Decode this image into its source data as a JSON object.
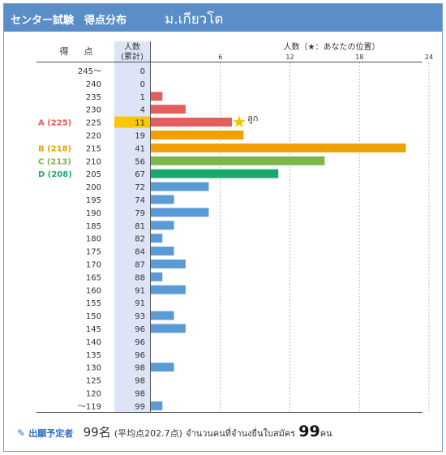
{
  "header": {
    "title": "センター試験　得点分布",
    "school": "ม.เกียวโต"
  },
  "colors": {
    "header_bg": "#5b8ec9",
    "bar_default": "#5b9bd5",
    "bar_red": "#e35d5d",
    "bar_orange": "#f0a000",
    "bar_green_light": "#7ab648",
    "bar_green_dark": "#1aa86c",
    "cum_col_bg": "#dde4f6",
    "cum_highlight": "#f8c800",
    "star": "#f5c400"
  },
  "chart_data": {
    "type": "bar",
    "orientation": "horizontal",
    "columns": {
      "score_header": [
        "得",
        "点"
      ],
      "cumulative_header": [
        "人数",
        "(累計)"
      ],
      "axis_title": "人数（★：あなたの位置）"
    },
    "x_ticks": [
      6,
      12,
      18,
      24
    ],
    "xlim": [
      0,
      24
    ],
    "grid": true,
    "rows": [
      {
        "score": "245～",
        "cumulative": 0,
        "count": 0,
        "color": "default"
      },
      {
        "score": "240",
        "cumulative": 0,
        "count": 0,
        "color": "default"
      },
      {
        "score": "235",
        "cumulative": 1,
        "count": 1,
        "color": "red"
      },
      {
        "score": "230",
        "cumulative": 4,
        "count": 3,
        "color": "red"
      },
      {
        "score": "225",
        "cumulative": 11,
        "count": 7,
        "color": "red",
        "highlight": true,
        "rank": "A (225)",
        "rank_color": "#e35d5d",
        "star": true,
        "star_label": "ลูก"
      },
      {
        "score": "220",
        "cumulative": 19,
        "count": 8,
        "color": "orange"
      },
      {
        "score": "215",
        "cumulative": 41,
        "count": 22,
        "color": "orange",
        "rank": "B (218)",
        "rank_color": "#f0a000"
      },
      {
        "score": "210",
        "cumulative": 56,
        "count": 15,
        "color": "green_light",
        "rank": "C (213)",
        "rank_color": "#7ab648"
      },
      {
        "score": "205",
        "cumulative": 67,
        "count": 11,
        "color": "green_dark",
        "rank": "D (208)",
        "rank_color": "#1aa86c"
      },
      {
        "score": "200",
        "cumulative": 72,
        "count": 5,
        "color": "default"
      },
      {
        "score": "195",
        "cumulative": 74,
        "count": 2,
        "color": "default"
      },
      {
        "score": "190",
        "cumulative": 79,
        "count": 5,
        "color": "default"
      },
      {
        "score": "185",
        "cumulative": 81,
        "count": 2,
        "color": "default"
      },
      {
        "score": "180",
        "cumulative": 82,
        "count": 1,
        "color": "default"
      },
      {
        "score": "175",
        "cumulative": 84,
        "count": 2,
        "color": "default"
      },
      {
        "score": "170",
        "cumulative": 87,
        "count": 3,
        "color": "default"
      },
      {
        "score": "165",
        "cumulative": 88,
        "count": 1,
        "color": "default"
      },
      {
        "score": "160",
        "cumulative": 91,
        "count": 3,
        "color": "default"
      },
      {
        "score": "155",
        "cumulative": 91,
        "count": 0,
        "color": "default"
      },
      {
        "score": "150",
        "cumulative": 93,
        "count": 2,
        "color": "default"
      },
      {
        "score": "145",
        "cumulative": 96,
        "count": 3,
        "color": "default"
      },
      {
        "score": "140",
        "cumulative": 96,
        "count": 0,
        "color": "default"
      },
      {
        "score": "135",
        "cumulative": 96,
        "count": 0,
        "color": "default"
      },
      {
        "score": "130",
        "cumulative": 98,
        "count": 2,
        "color": "default"
      },
      {
        "score": "125",
        "cumulative": 98,
        "count": 0,
        "color": "default"
      },
      {
        "score": "120",
        "cumulative": 98,
        "count": 0,
        "color": "default"
      },
      {
        "score": "～119",
        "cumulative": 99,
        "count": 1,
        "color": "default"
      }
    ]
  },
  "footer": {
    "pencil_icon": "✎",
    "label": "出願予定者",
    "count": "99名",
    "average": "(平均点202.7点)",
    "thai_text": "จำนวนคนที่จำนงยื่นใบสมัคร",
    "thai_count": "99",
    "thai_unit": "คน"
  }
}
